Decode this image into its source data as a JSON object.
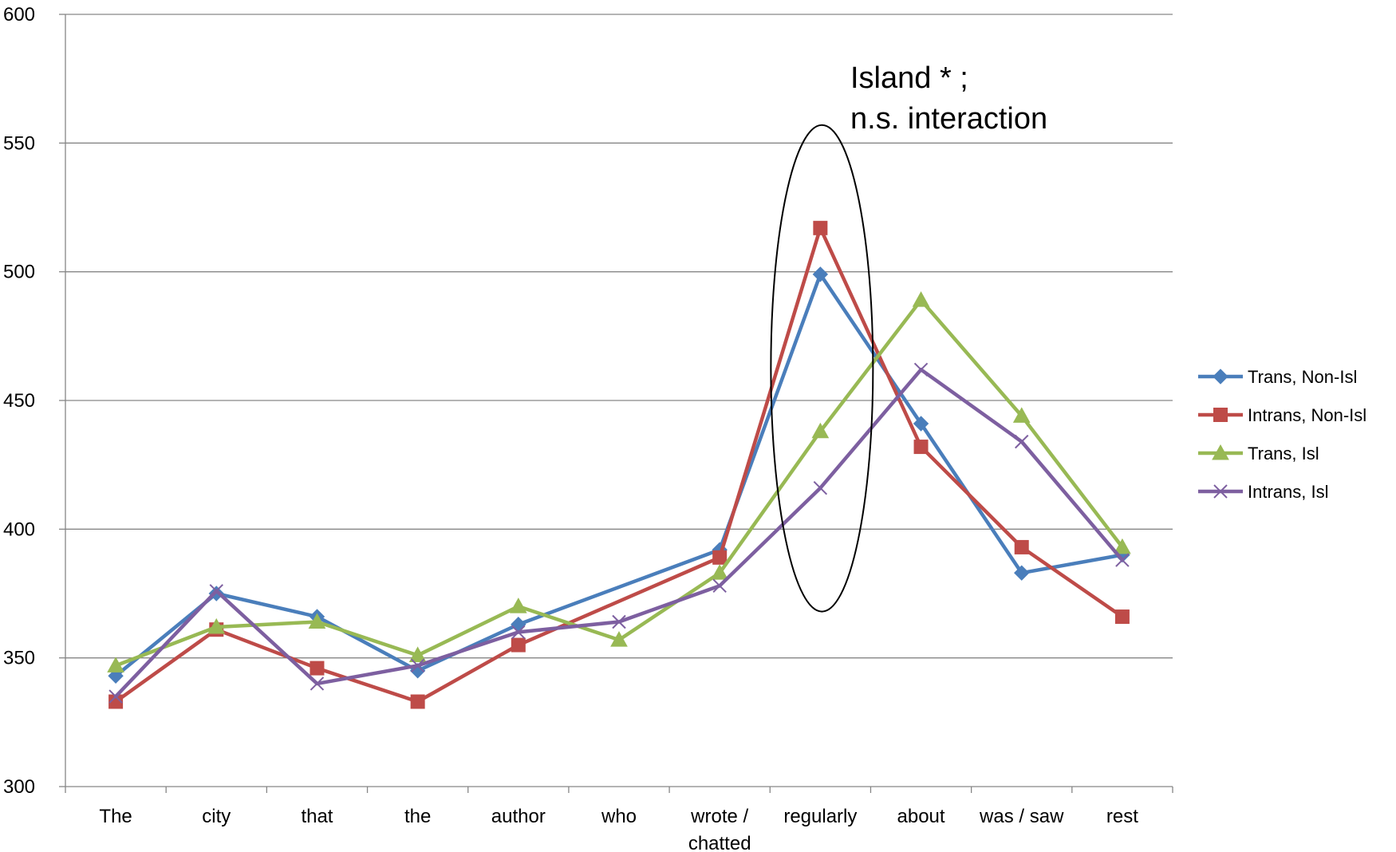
{
  "chart_data": {
    "type": "line",
    "title": "",
    "xlabel": "",
    "ylabel": "",
    "ylim": [
      300,
      600
    ],
    "yticks": [
      300,
      350,
      400,
      450,
      500,
      550,
      600
    ],
    "grid": "horizontal",
    "legend_position": "right",
    "categories": [
      "The",
      "city",
      "that",
      "the",
      "author",
      "who",
      "wrote / chatted",
      "regularly",
      "about",
      "was / saw",
      "rest"
    ],
    "category_lines": [
      [
        "The"
      ],
      [
        "city"
      ],
      [
        "that"
      ],
      [
        "the"
      ],
      [
        "author"
      ],
      [
        "who"
      ],
      [
        "wrote /",
        "chatted"
      ],
      [
        "regularly"
      ],
      [
        "about"
      ],
      [
        "was / saw"
      ],
      [
        "rest"
      ]
    ],
    "series": [
      {
        "name": "Trans, Non-Isl",
        "color": "#4a7ebb",
        "marker": "diamond",
        "values": [
          343,
          375,
          366,
          345,
          363,
          null,
          392,
          499,
          441,
          383,
          390
        ]
      },
      {
        "name": "Intrans, Non-Isl",
        "color": "#be4b48",
        "marker": "square",
        "values": [
          333,
          361,
          346,
          333,
          355,
          null,
          389,
          517,
          432,
          393,
          366
        ]
      },
      {
        "name": "Trans, Isl",
        "color": "#98b954",
        "marker": "triangle",
        "values": [
          347,
          362,
          364,
          351,
          370,
          357,
          383,
          438,
          489,
          444,
          393
        ]
      },
      {
        "name": "Intrans, Isl",
        "color": "#7d5fa0",
        "marker": "x",
        "values": [
          335,
          376,
          340,
          347,
          360,
          364,
          378,
          416,
          462,
          434,
          388
        ]
      }
    ],
    "annotation": {
      "lines": [
        "Island * ;",
        "n.s. interaction"
      ],
      "ellipse_around_category": "regularly",
      "ellipse_y_range": [
        368,
        557
      ]
    }
  }
}
